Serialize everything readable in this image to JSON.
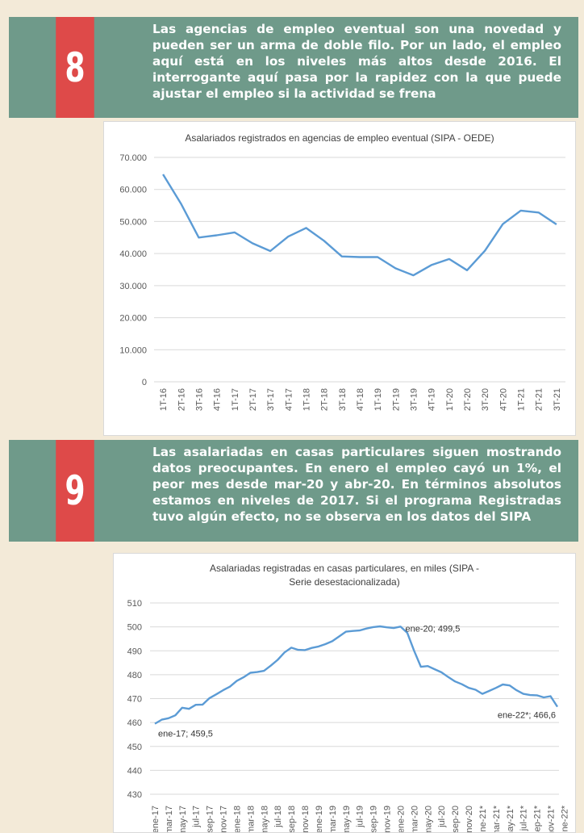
{
  "sections": [
    {
      "number": "8",
      "text": "Las agencias de empleo eventual son una novedad y pueden ser un arma de doble filo. Por un lado, el empleo aquí está en los niveles más altos desde 2016. El interrogante aquí pasa por la rapidez con la que puede ajustar el empleo si la actividad se frena"
    },
    {
      "number": "9",
      "text": "Las asalariadas en casas particulares siguen mostrando datos preocupantes. En enero el empleo cayó un 1%, el peor mes desde mar-20 y abr-20. En términos absolutos estamos en niveles de 2017. Si el programa Registradas tuvo algún efecto, no se observa en los datos del SIPA"
    }
  ],
  "chart_data": [
    {
      "type": "line",
      "title": "Asalariados registrados en agencias de empleo eventual (SIPA - OEDE)",
      "categories": [
        "1T-16",
        "2T-16",
        "3T-16",
        "4T-16",
        "1T-17",
        "2T-17",
        "3T-17",
        "4T-17",
        "1T-18",
        "2T-18",
        "3T-18",
        "4T-18",
        "1T-19",
        "2T-19",
        "3T-19",
        "4T-19",
        "1T-20",
        "2T-20",
        "3T-20",
        "4T-20",
        "1T-21",
        "2T-21",
        "3T-21"
      ],
      "values": [
        64700,
        55600,
        45000,
        45700,
        46600,
        43200,
        40800,
        45300,
        48000,
        44000,
        39100,
        38900,
        38900,
        35400,
        33200,
        36400,
        38300,
        34800,
        40900,
        49200,
        53400,
        52800,
        49100
      ],
      "yticks": [
        "0",
        "10.000",
        "20.000",
        "30.000",
        "40.000",
        "50.000",
        "60.000",
        "70.000"
      ],
      "ylim": [
        0,
        70000
      ],
      "line_color": "#5b9bd5",
      "grid": true
    },
    {
      "type": "line",
      "title": "Asalariadas registradas en casas particulares, en miles (SIPA - Serie desestacionalizada)",
      "x_tick_labels": [
        "ene-17",
        "mar-17",
        "may-17",
        "jul-17",
        "sep-17",
        "nov-17",
        "ene-18",
        "mar-18",
        "may-18",
        "jul-18",
        "sep-18",
        "nov-18",
        "ene-19",
        "mar-19",
        "may-19",
        "jul-19",
        "sep-19",
        "nov-19",
        "ene-20",
        "mar-20",
        "may-20",
        "jul-20",
        "sep-20",
        "nov-20",
        "ene-21*",
        "mar-21*",
        "may-21*",
        "jul-21*",
        "sep-21*",
        "nov-21*",
        "ene-22*"
      ],
      "values": [
        459.5,
        461.2,
        461.8,
        463.0,
        466.2,
        465.7,
        467.4,
        467.5,
        470.2,
        471.8,
        473.5,
        475.0,
        477.4,
        478.9,
        480.8,
        481.1,
        481.6,
        483.8,
        486.2,
        489.3,
        491.3,
        490.4,
        490.3,
        491.2,
        491.8,
        492.8,
        494.0,
        496.0,
        498.0,
        498.3,
        498.5,
        499.3,
        499.9,
        500.2,
        499.8,
        499.5,
        500.1,
        497.5,
        490.0,
        483.3,
        483.6,
        482.3,
        481.0,
        479.0,
        477.2,
        476.0,
        474.5,
        473.7,
        472.0,
        473.2,
        474.5,
        475.9,
        475.5,
        473.5,
        472.0,
        471.5,
        471.4,
        470.5,
        471.0,
        466.6
      ],
      "yticks": [
        "430",
        "440",
        "450",
        "460",
        "470",
        "480",
        "490",
        "500",
        "510"
      ],
      "ylim": [
        430,
        510
      ],
      "line_color": "#5b9bd5",
      "grid": true,
      "annotations": [
        "ene-17; 459,5",
        "ene-20; 499,5",
        "ene-22*; 466,6"
      ]
    }
  ]
}
